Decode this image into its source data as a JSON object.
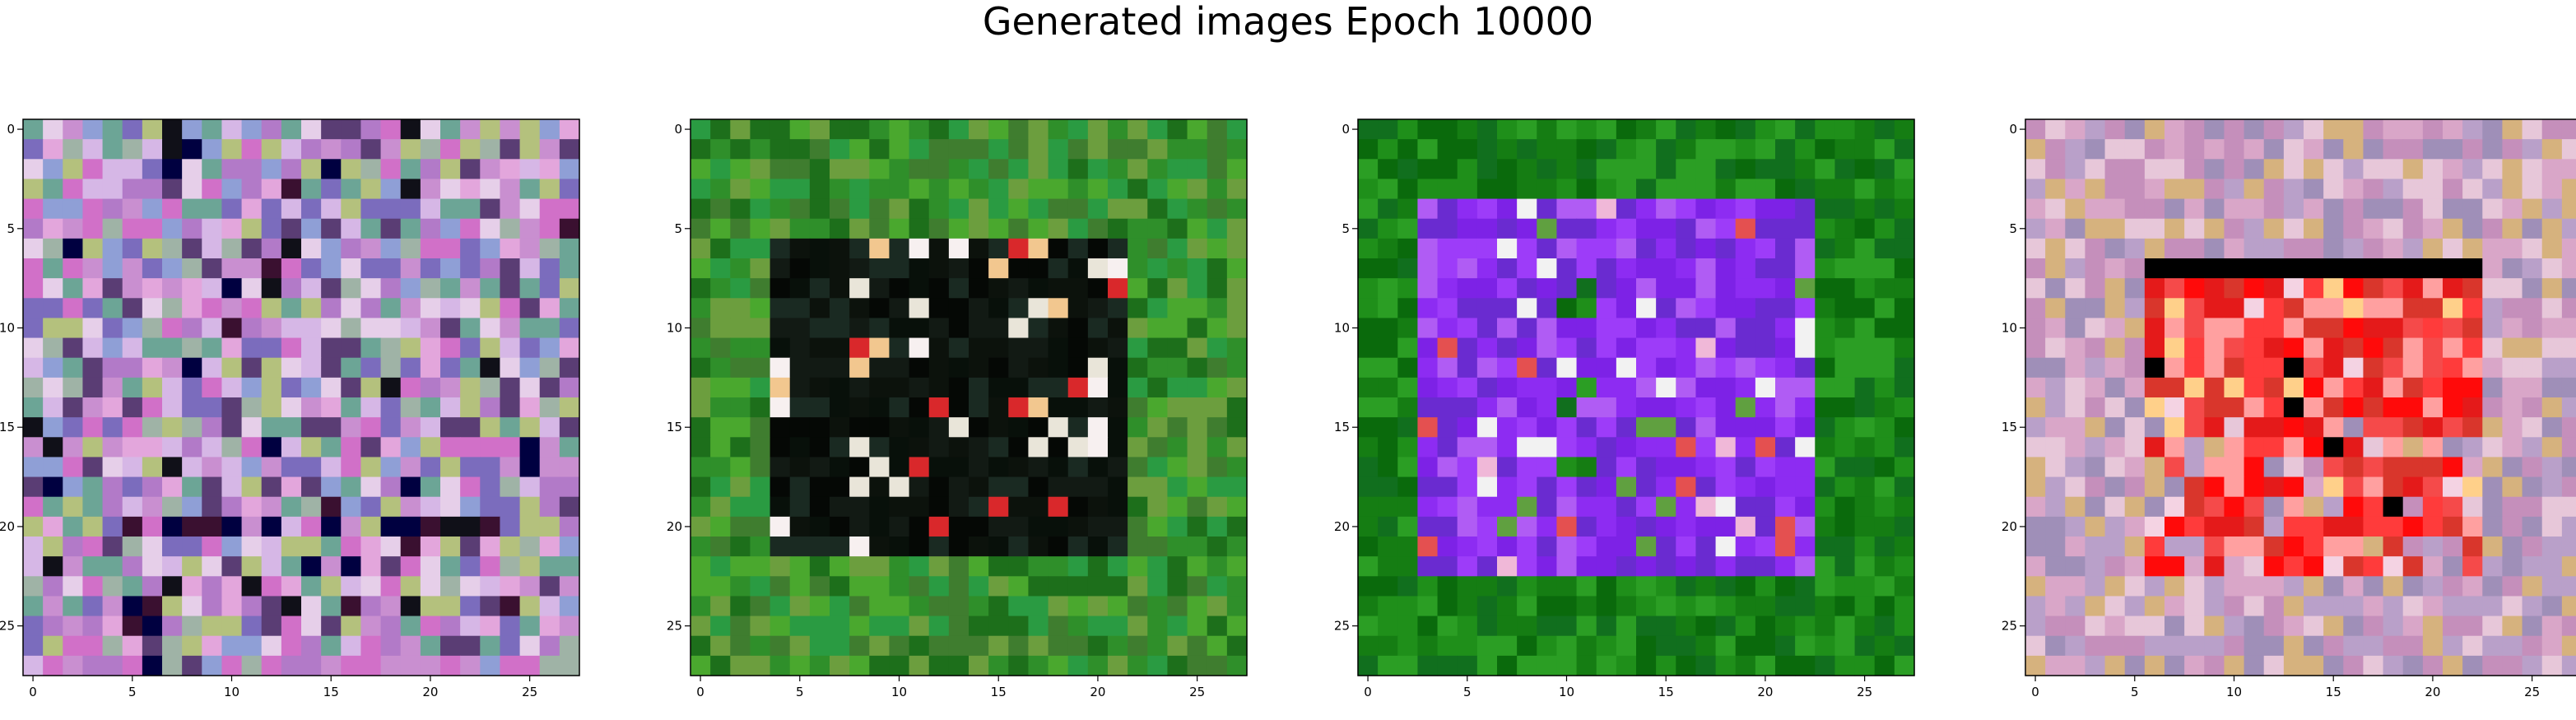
{
  "title": "Generated images Epoch 10000",
  "grid_size": 28,
  "axis_ticks": {
    "x": [
      "0",
      "5",
      "10",
      "15",
      "20",
      "25"
    ],
    "y": [
      "0",
      "5",
      "10",
      "15",
      "20",
      "25"
    ],
    "values": [
      0,
      5,
      10,
      15,
      20,
      25
    ]
  },
  "images": [
    {
      "name": "image-1",
      "style": "noise",
      "palette": [
        "#c98fd0",
        "#b27ac8",
        "#e3a6dc",
        "#8f9fd6",
        "#d6b7e6",
        "#9fb3a6",
        "#d170c8",
        "#7b6cbd",
        "#e6cfe9",
        "#6ca596",
        "#b4c17d",
        "#5a3d74"
      ],
      "dark": [
        "#101018",
        "#3a1030",
        "#000040"
      ],
      "dark_rows": [
        20
      ]
    },
    {
      "name": "image-2",
      "style": "frame",
      "background": [
        "#2f8f2a",
        "#4aa82e",
        "#1d6f1b",
        "#6c9e3e",
        "#3f7d2f",
        "#2a9b42"
      ],
      "center": [
        "#050805",
        "#0c120c",
        "#121a14",
        "#08100a",
        "#1a2a22"
      ],
      "accents": [
        "#f2c78f",
        "#e9e5d9",
        "#d9282b",
        "#f7f0f0"
      ],
      "frame": [
        6,
        21
      ],
      "center_accent_rows": [
        5,
        6,
        10
      ]
    },
    {
      "name": "image-3",
      "style": "frame",
      "background": [
        "#157d13",
        "#1f8f1a",
        "#0a6a0c",
        "#2b9e24",
        "#116f1e"
      ],
      "center": [
        "#8d2cf2",
        "#9d3cf9",
        "#7d22e6",
        "#b05cf4",
        "#6a2bd0"
      ],
      "accents": [
        "#f2f2f2",
        "#e45050",
        "#f0b8d8",
        "#60a040"
      ],
      "frame": [
        4,
        22
      ],
      "center_accent_rows": [
        9,
        13
      ]
    },
    {
      "name": "image-4",
      "style": "frame",
      "background": [
        "#d9a6c8",
        "#c58fbb",
        "#e7c7d9",
        "#b9a0c9",
        "#9f8fb8",
        "#d6b27e"
      ],
      "center": [
        "#ff0a0a",
        "#e41a1a",
        "#ff3b3b",
        "#d9362c",
        "#f54a4a",
        "#ffa0a0"
      ],
      "accents": [
        "#000000",
        "#f4d3e3",
        "#ffd08a"
      ],
      "frame": [
        7,
        22
      ],
      "center_accent_rows": [
        7
      ]
    }
  ]
}
